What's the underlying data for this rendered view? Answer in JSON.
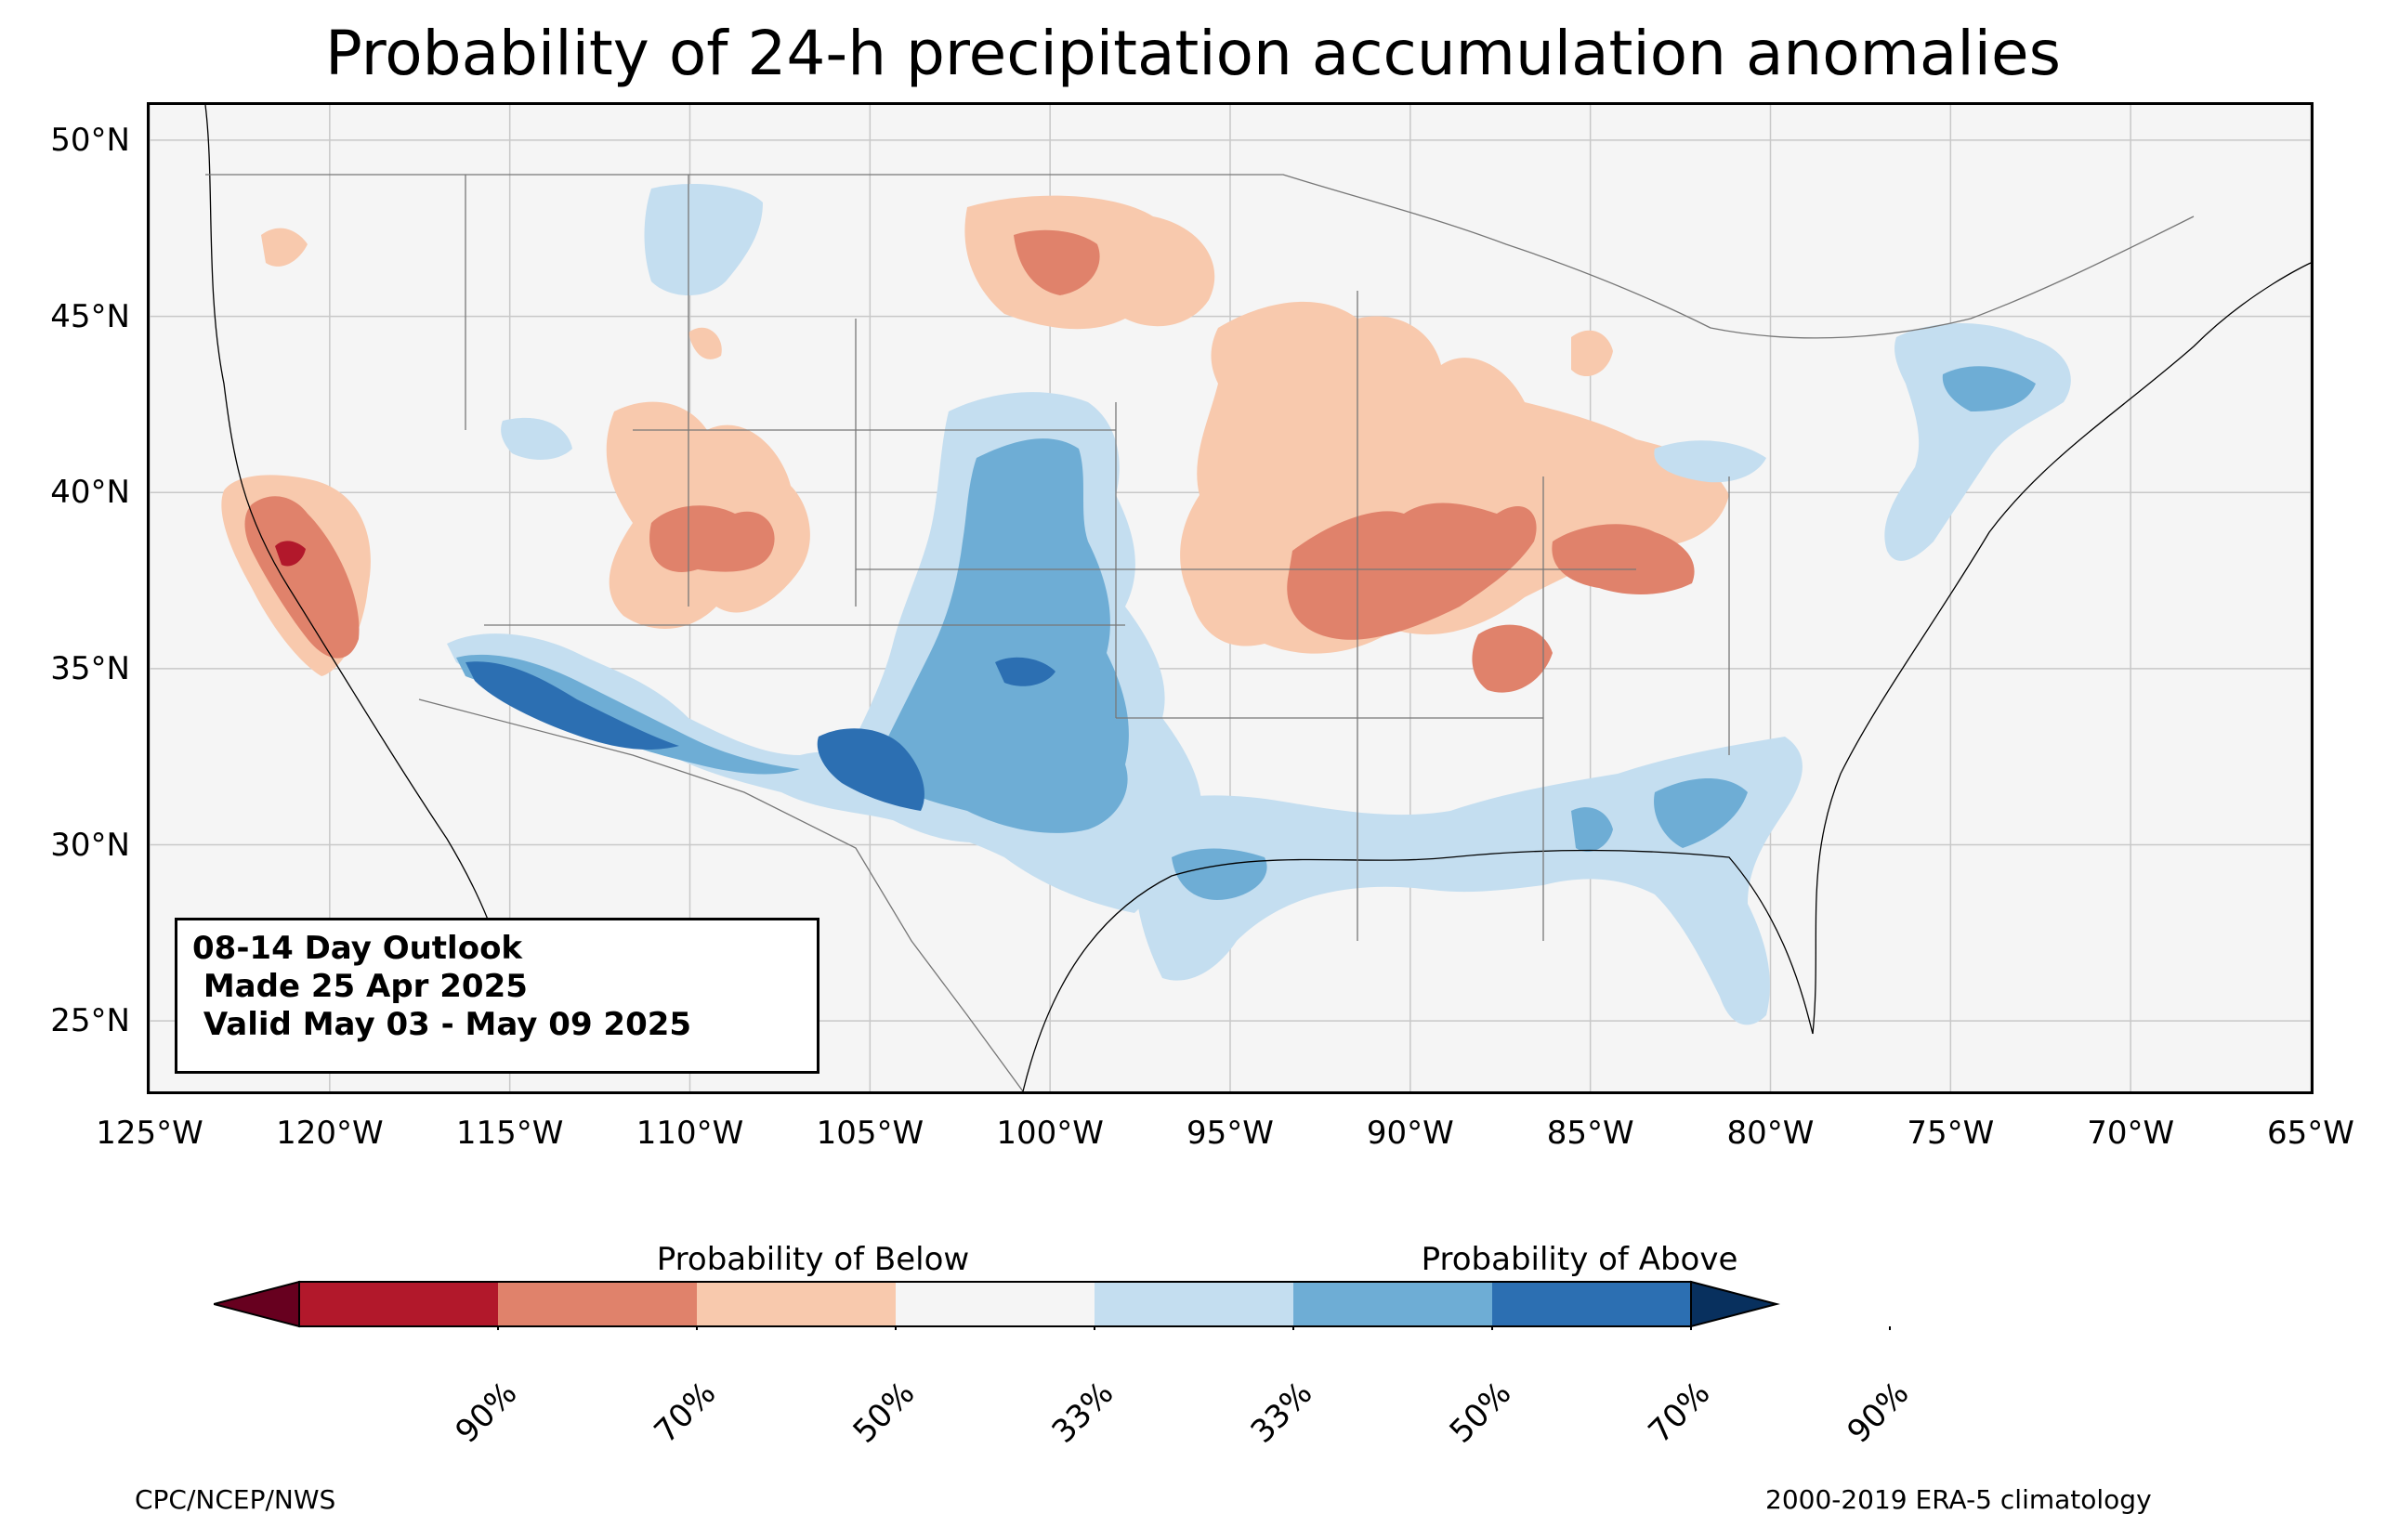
{
  "title": "Probability of 24-h precipitation accumulation anomalies",
  "map": {
    "lat_labels": [
      "50°N",
      "45°N",
      "40°N",
      "35°N",
      "30°N",
      "25°N"
    ],
    "lon_labels": [
      "125°W",
      "120°W",
      "115°W",
      "110°W",
      "105°W",
      "100°W",
      "95°W",
      "90°W",
      "85°W",
      "80°W",
      "75°W",
      "70°W",
      "65°W"
    ],
    "lon_range": [
      -125,
      -65
    ],
    "lat_range": [
      23,
      51
    ],
    "gridlines": true
  },
  "info_box": {
    "line1": "08-14 Day Outlook",
    "line2": " Made 25 Apr 2025",
    "line3": " Valid May 03 - May 09 2025"
  },
  "colorbar": {
    "below_label": "Probability of Below",
    "above_label": "Probability of Above",
    "tick_labels": [
      "90%",
      "70%",
      "50%",
      "33%",
      "33%",
      "50%",
      "70%",
      "90%"
    ],
    "colors": [
      "#67001f",
      "#b2182b",
      "#d6604d",
      "#f4a582",
      "#fddbc7",
      "#f7f7f7",
      "#d1e5f0",
      "#92c5de",
      "#4393c3",
      "#2166ac",
      "#053061"
    ],
    "bin_colors": [
      "#b2182b",
      "#e0826b",
      "#f8c9ad",
      "#f5f5f5",
      "#c4def0",
      "#6eadd5",
      "#2c6fb2"
    ],
    "extend_below": "#67001f",
    "extend_above": "#08305e"
  },
  "footer": {
    "left": "CPC/NCEP/NWS",
    "right": "2000-2019 ERA-5 climatology"
  }
}
